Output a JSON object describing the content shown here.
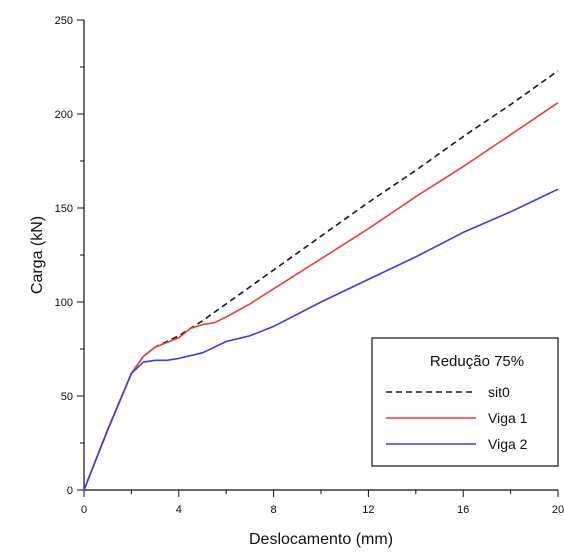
{
  "chart_data": {
    "type": "line",
    "title": "",
    "xlabel": "Deslocamento (mm)",
    "ylabel": "Carga (kN)",
    "xlim": [
      0,
      20
    ],
    "ylim": [
      0,
      250
    ],
    "xticks": [
      0,
      4,
      8,
      12,
      16,
      20
    ],
    "xtick_labels": [
      "0",
      "4",
      "8",
      "12",
      "16",
      "20"
    ],
    "yticks": [
      0,
      50,
      100,
      150,
      200,
      250
    ],
    "ytick_labels": [
      "0",
      "50",
      "100",
      "150",
      "200",
      "250"
    ],
    "grid": false,
    "legend": {
      "title": "Redução 75%",
      "placement": "bottom-right"
    },
    "series": [
      {
        "name": "sit0",
        "color": "#1a1a1a",
        "dash": "dashed",
        "x": [
          0,
          1,
          2,
          2.5,
          3,
          4,
          5,
          6,
          8,
          10,
          12,
          14,
          16,
          18,
          20
        ],
        "y": [
          0,
          32,
          62,
          71,
          76,
          82,
          90,
          99,
          117,
          135,
          153,
          170,
          188,
          205,
          223
        ]
      },
      {
        "name": "Viga 1",
        "color": "#e8413e",
        "dash": "solid",
        "x": [
          0,
          1,
          2,
          2.5,
          3,
          4,
          4.5,
          5,
          5.5,
          6,
          7,
          8,
          10,
          12,
          14,
          16,
          18,
          20
        ],
        "y": [
          0,
          32,
          62,
          71,
          76,
          81,
          86,
          88,
          89,
          92,
          99,
          107,
          123,
          139,
          156,
          172,
          189,
          206
        ]
      },
      {
        "name": "Viga 2",
        "color": "#3b3bf2",
        "dash": "solid",
        "x": [
          0,
          1,
          2,
          2.5,
          3,
          3.5,
          4,
          5,
          6,
          7,
          8,
          10,
          12,
          14,
          16,
          18,
          19,
          20
        ],
        "y": [
          0,
          32,
          62,
          68,
          69,
          69,
          70,
          73,
          79,
          82,
          87,
          100,
          112,
          124,
          137,
          148,
          154,
          160
        ]
      }
    ]
  }
}
